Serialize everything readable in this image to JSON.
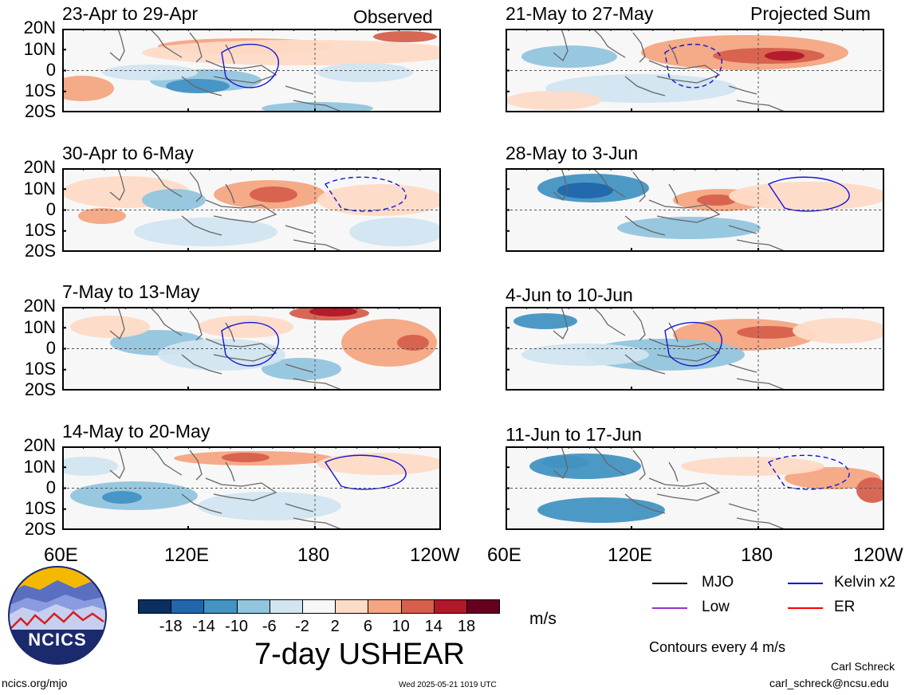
{
  "header": {
    "left_label": "Observed",
    "right_label": "Projected Sum"
  },
  "panels_left": [
    {
      "title": "23-Apr to 29-Apr"
    },
    {
      "title": "30-Apr to 6-May"
    },
    {
      "title": "7-May to 13-May"
    },
    {
      "title": "14-May to 20-May"
    }
  ],
  "panels_right": [
    {
      "title": "21-May to 27-May"
    },
    {
      "title": "28-May to 3-Jun"
    },
    {
      "title": "4-Jun to 10-Jun"
    },
    {
      "title": "11-Jun to 17-Jun"
    }
  ],
  "lat_labels": [
    "20N",
    "10N",
    "0",
    "10S",
    "20S"
  ],
  "lon_labels": [
    "60E",
    "120E",
    "180",
    "120W"
  ],
  "colorbar": {
    "colors": [
      "#0b2f5e",
      "#2166ac",
      "#4393c3",
      "#92c5de",
      "#d1e5f0",
      "#f7f7f7",
      "#fddbc7",
      "#f4a582",
      "#d6604d",
      "#b2182b",
      "#67001f"
    ],
    "labels": [
      "-18",
      "-14",
      "-10",
      "-6",
      "-2",
      "2",
      "6",
      "10",
      "14",
      "18"
    ],
    "unit": "m/s"
  },
  "main_title": "7-day USHEAR",
  "legend": {
    "items": [
      {
        "label": "MJO",
        "color": "#000000"
      },
      {
        "label": "Kelvin x2",
        "color": "#0000dd"
      },
      {
        "label": "Low",
        "color": "#9932cc"
      },
      {
        "label": "ER",
        "color": "#ff0000"
      }
    ],
    "contour_note": "Contours every 4 m/s"
  },
  "footer": {
    "site": "ncics.org/mjo",
    "timestamp": "Wed 2025-05-21 1019 UTC",
    "author": "Carl Schreck",
    "email": "carl_schreck@ncsu.edu"
  },
  "logo": {
    "text": "NCICS"
  }
}
